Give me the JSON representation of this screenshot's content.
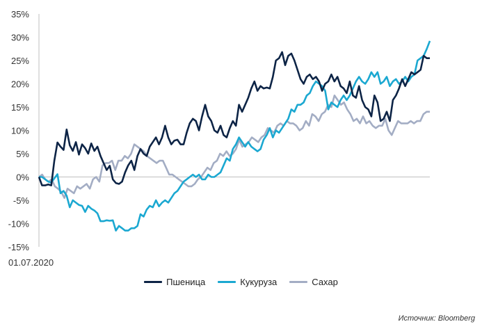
{
  "chart_data": {
    "type": "line",
    "title": "",
    "xlabel": "",
    "ylabel": "",
    "x_start_label": "01.07.2020",
    "ylim": [
      -15,
      35
    ],
    "yticks": [
      35,
      30,
      25,
      20,
      15,
      10,
      5,
      0,
      -5,
      -10,
      -15
    ],
    "ytick_labels": [
      "35%",
      "30%",
      "25%",
      "20%",
      "15%",
      "10%",
      "5%",
      "0%",
      "-5%",
      "-10%",
      "-15%"
    ],
    "grid": false,
    "legend_position": "bottom",
    "series": [
      {
        "name": "Пшеница",
        "color": "#0d2446",
        "values": [
          0,
          -1.8,
          -1.8,
          -1.6,
          -1.8,
          3.5,
          7.4,
          6.5,
          5.8,
          10.2,
          6.8,
          5.6,
          7.5,
          4.8,
          7.0,
          6.2,
          5.0,
          7.2,
          5.6,
          6.5,
          4.5,
          3.0,
          1.5,
          2.4,
          -0.5,
          -1.3,
          -1.5,
          -1.0,
          1.0,
          2.5,
          3.5,
          1.5,
          4.5,
          6.0,
          5.0,
          4.5,
          6.5,
          7.5,
          8.5,
          7.0,
          8.5,
          11.0,
          8.5,
          7.0,
          7.8,
          8.0,
          7.0,
          7.0,
          9.5,
          11.5,
          12.5,
          12.0,
          10.0,
          13.0,
          15.5,
          13.0,
          12.0,
          10.0,
          9.5,
          11.0,
          9.0,
          8.5,
          10.5,
          12.0,
          11.0,
          15.5,
          14.0,
          15.5,
          17.0,
          19.0,
          20.5,
          18.5,
          19.5,
          19.0,
          19.2,
          19.0,
          21.5,
          25.0,
          25.5,
          26.8,
          24.0,
          26.0,
          26.5,
          25.0,
          23.0,
          21.0,
          20.0,
          21.5,
          22.0,
          21.0,
          21.5,
          20.5,
          18.5,
          20.0,
          20.5,
          22.0,
          20.5,
          21.5,
          19.5,
          19.0,
          18.0,
          20.5,
          17.5,
          17.0,
          19.5,
          16.5,
          15.0,
          14.5,
          13.0,
          17.5,
          16.0,
          12.0,
          12.5,
          14.0,
          12.0,
          16.5,
          17.5,
          19.0,
          21.0,
          19.5,
          21.0,
          22.5,
          22.0,
          22.5,
          23.0,
          26.0,
          25.5,
          25.5
        ]
      },
      {
        "name": "Кукуруза",
        "color": "#1ba8d1",
        "values": [
          0,
          0,
          -0.5,
          -1.0,
          -1.2,
          -0.3,
          0.6,
          -3.5,
          -3.0,
          -4.0,
          -6.5,
          -5.0,
          -5.5,
          -6.0,
          -6.2,
          -7.5,
          -6.2,
          -6.8,
          -7.2,
          -7.8,
          -9.5,
          -9.5,
          -9.3,
          -9.4,
          -9.3,
          -11.5,
          -10.5,
          -11.0,
          -11.5,
          -11.5,
          -11.0,
          -11.0,
          -10.5,
          -8.0,
          -8.5,
          -7.0,
          -6.2,
          -6.5,
          -5.0,
          -6.3,
          -5.5,
          -5.0,
          -5.5,
          -4.5,
          -3.5,
          -3.0,
          -2.0,
          -1.0,
          -0.5,
          0.0,
          0.5,
          0.0,
          0.5,
          -0.5,
          -0.5,
          0.5,
          0.0,
          0.0,
          0.5,
          1.0,
          2.5,
          4.0,
          3.5,
          6.0,
          7.0,
          8.5,
          7.5,
          6.5,
          7.5,
          6.5,
          6.0,
          5.5,
          6.0,
          8.0,
          9.0,
          10.5,
          8.5,
          10.0,
          9.5,
          10.5,
          11.5,
          12.5,
          14.5,
          14.0,
          15.5,
          15.5,
          16.0,
          17.5,
          18.0,
          19.5,
          20.5,
          20.0,
          19.5,
          18.5,
          14.5,
          16.0,
          15.5,
          15.0,
          16.5,
          17.5,
          16.5,
          17.5,
          19.0,
          20.5,
          21.5,
          20.5,
          20.0,
          21.0,
          22.5,
          21.5,
          22.5,
          20.0,
          20.5,
          21.5,
          19.5,
          20.5,
          21.0,
          20.0,
          20.5,
          21.5,
          20.5,
          21.5,
          22.0,
          25.0,
          25.5,
          26.0,
          27.5,
          29.2
        ]
      },
      {
        "name": "Сахар",
        "color": "#a3adc4",
        "values": [
          0,
          0.5,
          -0.5,
          -1.0,
          -0.5,
          -2.0,
          -2.5,
          -3.2,
          -4.5,
          -2.5,
          -3.0,
          -3.5,
          -2.0,
          -2.5,
          -2.0,
          -1.5,
          -2.5,
          -0.5,
          0.0,
          -1.0,
          2.5,
          3.0,
          3.0,
          3.5,
          1.5,
          3.5,
          3.5,
          4.5,
          4.0,
          5.0,
          7.0,
          6.5,
          6.0,
          5.5,
          4.5,
          4.0,
          3.5,
          3.0,
          3.5,
          3.5,
          2.0,
          0.5,
          0.5,
          0.0,
          -0.5,
          -1.0,
          -1.5,
          -2.0,
          -2.0,
          -1.5,
          -0.5,
          0.0,
          1.0,
          2.0,
          1.5,
          3.0,
          3.5,
          5.0,
          4.5,
          5.5,
          4.5,
          5.0,
          6.0,
          8.0,
          6.5,
          7.0,
          7.5,
          8.5,
          8.0,
          7.5,
          8.5,
          9.0,
          10.5,
          10.0,
          9.5,
          11.0,
          11.5,
          11.0,
          12.0,
          11.5,
          11.5,
          11.0,
          10.0,
          10.5,
          12.0,
          11.0,
          13.5,
          13.0,
          12.0,
          13.5,
          14.0,
          15.5,
          15.0,
          17.5,
          16.5,
          15.5,
          16.0,
          14.5,
          13.5,
          12.0,
          12.5,
          11.5,
          13.0,
          11.5,
          12.0,
          11.0,
          10.5,
          11.0,
          11.0,
          12.5,
          10.0,
          9.0,
          10.5,
          12.0,
          11.5,
          11.5,
          11.5,
          12.0,
          11.5,
          12.0,
          12.0,
          13.5,
          14.0,
          14.0
        ]
      }
    ]
  },
  "source_text": "Источник:  Bloomberg"
}
